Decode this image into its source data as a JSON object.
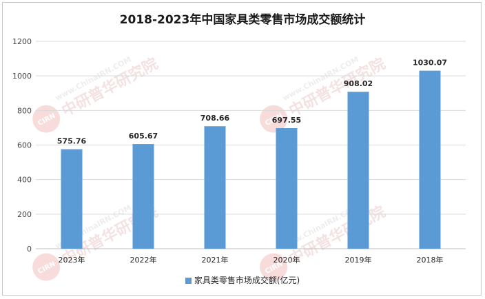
{
  "chart_data": {
    "type": "bar",
    "title": "2018-2023年中国家具类零售市场成交额统计",
    "categories": [
      "2023年",
      "2022年",
      "2021年",
      "2020年",
      "2019年",
      "2018年"
    ],
    "series": [
      {
        "name": "家具类零售市场成交额(亿元)",
        "values": [
          575.76,
          605.67,
          708.66,
          697.55,
          908.02,
          1030.07
        ],
        "color": "#5b9bd5"
      }
    ],
    "data_labels": [
      "575.76",
      "605.67",
      "708.66",
      "697.55",
      "908.02",
      "1030.07"
    ],
    "y_ticks": [
      "0",
      "200",
      "400",
      "600",
      "800",
      "1000",
      "1200"
    ],
    "ylim": [
      0,
      1200
    ],
    "grid": true,
    "legend_position": "bottom"
  },
  "watermark": {
    "url_text": "www.ChinaIRN.COM",
    "brand_text": "中研普华研究院",
    "logo_text": "CIRN"
  }
}
